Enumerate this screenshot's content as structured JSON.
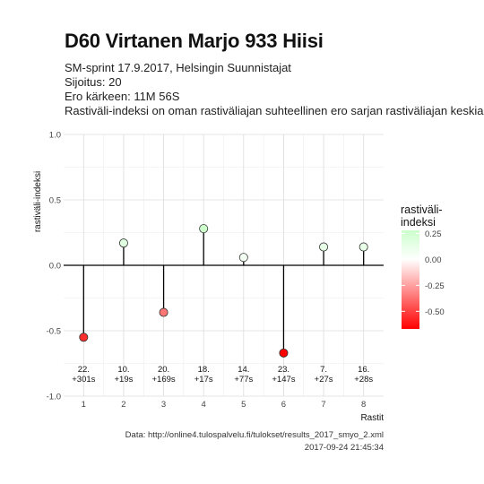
{
  "title": "D60 Virtanen Marjo 933 Hiisi",
  "subtitle_lines": [
    "SM-sprint 17.9.2017, Helsingin Suunnistajat",
    "Sijoitus: 20",
    "Ero kärkeen: 11M 56S",
    "Rastiväli-indeksi on oman rastiväliajan suhteellinen ero sarjan rastiväliajan keskiarvosta"
  ],
  "caption": {
    "line1": "Data: http://online4.tulospalvelu.fi/tulokset/results_2017_smyo_2.xml",
    "line2": "2017-09-24 21:45:34"
  },
  "chart_data": {
    "type": "scatter",
    "x": [
      1,
      2,
      3,
      4,
      5,
      6,
      7,
      8
    ],
    "y": [
      -0.55,
      0.17,
      -0.36,
      0.28,
      0.06,
      -0.67,
      0.14,
      0.14
    ],
    "labels": [
      "22.\n+301s",
      "10.\n+19s",
      "20.\n+169s",
      "18.\n+17s",
      "14.\n+77s",
      "23.\n+147s",
      "7.\n+27s",
      "16.\n+28s"
    ],
    "xlabel": "Rastit",
    "ylabel": "rastiväli-indeksi",
    "xlim": [
      0.5,
      8.5
    ],
    "ylim": [
      -1.0,
      1.0
    ],
    "xticks": [
      1,
      2,
      3,
      4,
      5,
      6,
      7,
      8
    ],
    "yticks": [
      -1.0,
      -0.5,
      0.0,
      0.5,
      1.0
    ],
    "ytick_labels": [
      "-1.0",
      "-0.5",
      "0.0",
      "0.5",
      "1.0"
    ],
    "grid": true,
    "legend": {
      "title": "rastiväli-\nindeksi",
      "position": "right",
      "range": [
        -0.67,
        0.28
      ],
      "breaks": [
        0.25,
        0.0,
        -0.25,
        -0.5
      ],
      "break_labels": [
        "0.25",
        "0.00",
        "-0.25",
        "-0.50"
      ],
      "colors": {
        "low": "#ff0000",
        "mid": "#ffffff",
        "high": "#ccffcc"
      }
    }
  }
}
